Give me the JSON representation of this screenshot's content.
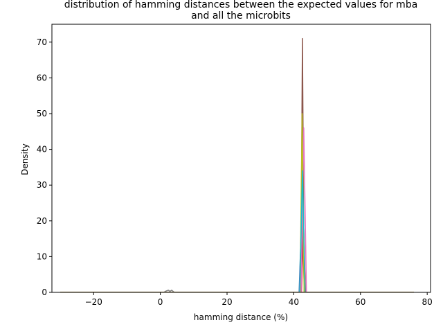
{
  "chart_data": {
    "type": "line",
    "title_line1": "distribution of hamming distances between the expected values for mba",
    "title_line2": "and all the microbits",
    "xlabel": "hamming distance (%)",
    "ylabel": "Density",
    "xlim": [
      -32.5,
      81
    ],
    "ylim": [
      0,
      75
    ],
    "xticks": [
      -20,
      0,
      20,
      40,
      60,
      80
    ],
    "yticks": [
      0,
      10,
      20,
      30,
      40,
      50,
      60,
      70
    ],
    "grid": false,
    "legend": "none",
    "series": [
      {
        "color": "#1f77b4",
        "x": [
          -30,
          41.6,
          42.1,
          42.5,
          42.9,
          43.3,
          76
        ],
        "y": [
          0,
          0,
          14,
          29,
          14,
          0,
          0
        ]
      },
      {
        "color": "#ff7f0e",
        "x": [
          -30,
          41.8,
          42.3,
          42.7,
          43.1,
          43.5,
          76
        ],
        "y": [
          0,
          0,
          11,
          22,
          11,
          0,
          0
        ]
      },
      {
        "color": "#2ca02c",
        "x": [
          -30,
          41.9,
          42.3,
          42.6,
          42.9,
          43.2,
          76
        ],
        "y": [
          0,
          0,
          9,
          18,
          9,
          0,
          0
        ]
      },
      {
        "color": "#d62728",
        "x": [
          -30,
          42.3,
          42.6,
          42.9,
          43.2,
          43.5,
          76
        ],
        "y": [
          0,
          0,
          10,
          21,
          10,
          0,
          0
        ]
      },
      {
        "color": "#9467bd",
        "x": [
          -30,
          41.7,
          42.1,
          42.5,
          42.9,
          43.3,
          76
        ],
        "y": [
          0,
          0,
          13,
          27,
          13,
          0,
          0
        ]
      },
      {
        "color": "#8c564b",
        "x": [
          -30,
          42.1,
          42.35,
          42.6,
          42.85,
          43.1,
          76
        ],
        "y": [
          0,
          0,
          35,
          71,
          35,
          0,
          0
        ]
      },
      {
        "color": "#e377c2",
        "x": [
          -30,
          42.2,
          42.6,
          43.0,
          43.4,
          43.8,
          76
        ],
        "y": [
          0,
          0,
          23,
          46,
          23,
          0,
          0
        ]
      },
      {
        "color": "#7f7f7f",
        "x": [
          -30,
          1.0,
          1.8,
          2.4,
          2.9,
          3.4,
          4.2,
          76
        ],
        "y": [
          0,
          0,
          0.4,
          0.6,
          0.3,
          0.6,
          0,
          0
        ]
      },
      {
        "color": "#bcbd22",
        "x": [
          -30,
          41.9,
          42.2,
          42.5,
          42.8,
          43.1,
          76
        ],
        "y": [
          0,
          0,
          25,
          50,
          25,
          0,
          0
        ]
      },
      {
        "color": "#17becf",
        "x": [
          -30,
          41.8,
          42.2,
          42.6,
          43.0,
          43.4,
          76
        ],
        "y": [
          0,
          0,
          17,
          34,
          17,
          0,
          0
        ]
      },
      {
        "color": "#ff7f0e",
        "x": [
          -30,
          76
        ],
        "y": [
          0,
          0
        ]
      }
    ]
  }
}
